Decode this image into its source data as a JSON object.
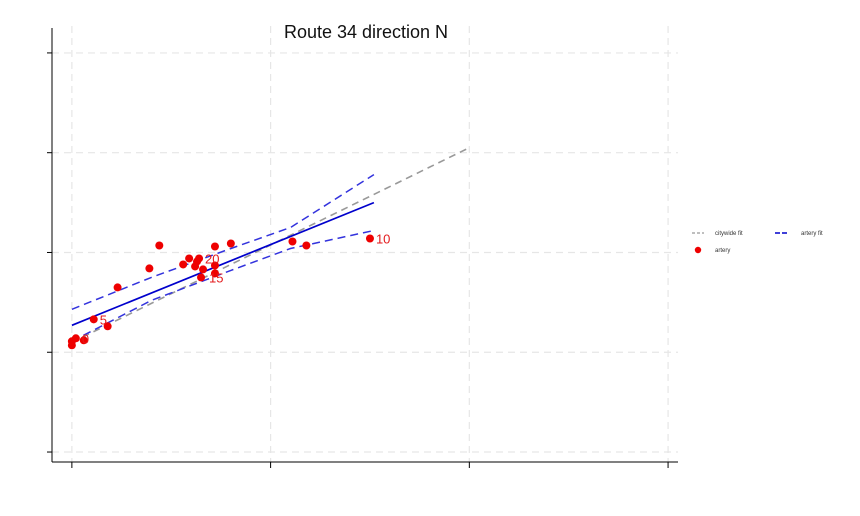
{
  "chart_data": {
    "type": "scatter",
    "title": "Route 34 direction N",
    "xlabel": "",
    "ylabel": "",
    "xlim": [
      -0.1,
      3.05
    ],
    "ylim": [
      -1.1,
      3.35
    ],
    "xticks": [
      0,
      1,
      2,
      3
    ],
    "yticks": [
      -1,
      0,
      1,
      2,
      3
    ],
    "grid": true,
    "legend_position": "right",
    "colors": {
      "citywide": "#999999",
      "artery": "#0000cc",
      "ci": "#3333dd",
      "points": "#ee0000",
      "label": "#e31a1c"
    },
    "series": [
      {
        "name": "citywide fit",
        "kind": "line",
        "dash": "dashed",
        "x": [
          0.0,
          2.0
        ],
        "y": [
          0.1,
          2.05
        ]
      },
      {
        "name": "artery fit",
        "kind": "line",
        "x": [
          0.0,
          1.52
        ],
        "y": [
          0.27,
          1.5
        ]
      },
      {
        "name": "",
        "kind": "band-upper",
        "dash": "dashed",
        "x": [
          0.0,
          0.4,
          0.8,
          1.1,
          1.52
        ],
        "y": [
          0.43,
          0.75,
          1.04,
          1.25,
          1.78
        ]
      },
      {
        "name": "",
        "kind": "band-lower",
        "dash": "dashed",
        "x": [
          0.0,
          0.4,
          0.8,
          1.1,
          1.52
        ],
        "y": [
          0.11,
          0.52,
          0.82,
          1.04,
          1.22
        ]
      },
      {
        "name": "artery",
        "kind": "points",
        "x": [
          0.0,
          0.0,
          0.02,
          0.06,
          0.11,
          0.18,
          0.23,
          0.39,
          0.44,
          0.56,
          0.59,
          0.62,
          0.63,
          0.64,
          0.65,
          0.66,
          0.72,
          0.72,
          0.72,
          0.8,
          1.11,
          1.18,
          1.5
        ],
        "y": [
          0.07,
          0.11,
          0.14,
          0.12,
          0.33,
          0.26,
          0.65,
          0.84,
          1.07,
          0.88,
          0.94,
          0.86,
          0.91,
          0.94,
          0.75,
          0.83,
          0.79,
          0.87,
          1.06,
          1.09,
          1.11,
          1.07,
          1.14
        ]
      }
    ],
    "point_labels": [
      {
        "text": "0",
        "x": 0.02,
        "y": 0.14
      },
      {
        "text": "5",
        "x": 0.11,
        "y": 0.33
      },
      {
        "text": "10",
        "x": 1.5,
        "y": 1.14
      },
      {
        "text": "15",
        "x": 0.66,
        "y": 0.75
      },
      {
        "text": "20",
        "x": 0.64,
        "y": 0.94
      }
    ]
  }
}
